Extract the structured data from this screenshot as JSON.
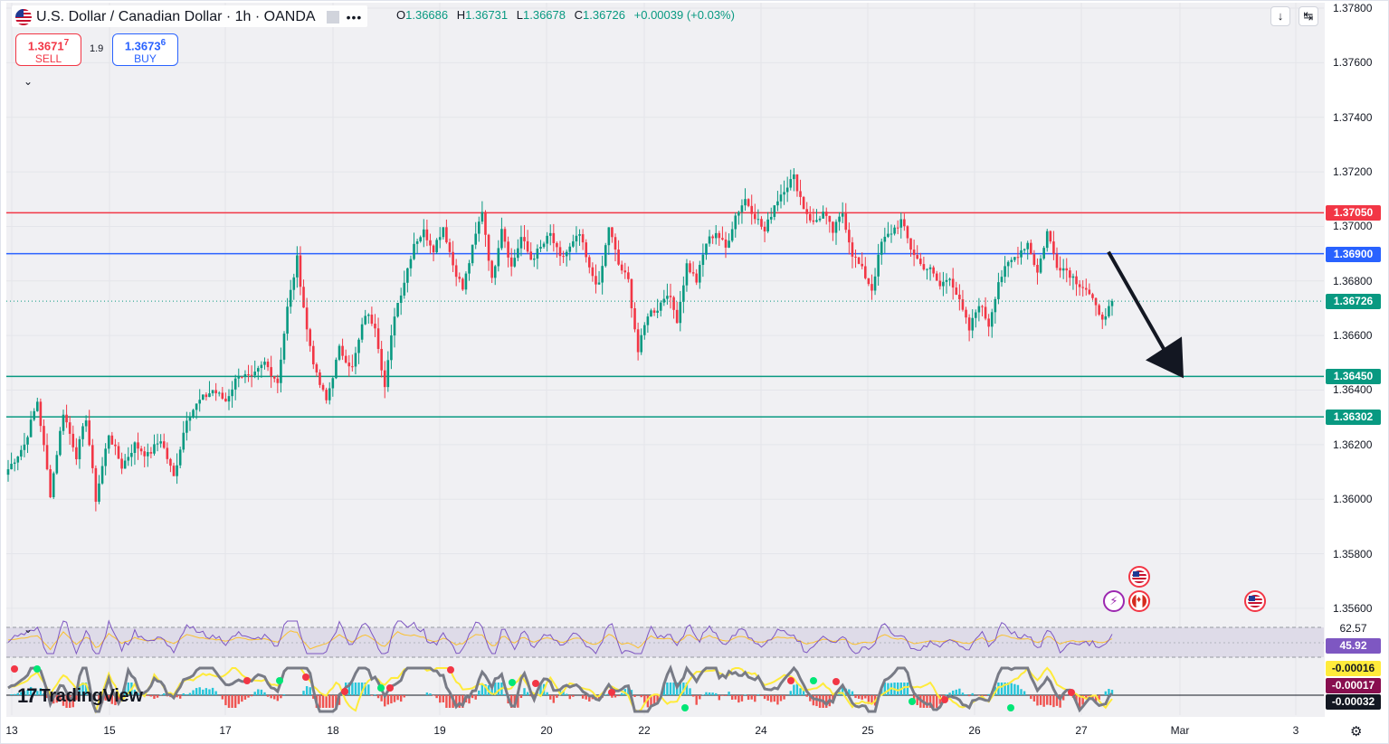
{
  "header": {
    "title": "U.S. Dollar / Canadian Dollar · 1h · OANDA",
    "ohlc": {
      "open_label": "O",
      "open": "1.36686",
      "high_label": "H",
      "high": "1.36731",
      "low_label": "L",
      "low": "1.36678",
      "close_label": "C",
      "close": "1.36726",
      "change": "+0.00039 (+0.03%)"
    },
    "sell": {
      "price_main": "1.3671",
      "price_small": "7",
      "label": "SELL"
    },
    "buy": {
      "price_main": "1.3673",
      "price_small": "6",
      "label": "BUY"
    },
    "spread": "1.9"
  },
  "chart_data": {
    "type": "candlestick",
    "symbol": "USDCAD",
    "interval": "1h",
    "source": "OANDA",
    "price_axis": {
      "min": 1.3554,
      "max": 1.3782,
      "ticks": [
        "1.37800",
        "1.37600",
        "1.37400",
        "1.37200",
        "1.37000",
        "1.36800",
        "1.36600",
        "1.36400",
        "1.36200",
        "1.36000",
        "1.35800",
        "1.35600"
      ],
      "tick_values": [
        1.378,
        1.376,
        1.374,
        1.372,
        1.37,
        1.368,
        1.366,
        1.364,
        1.362,
        1.36,
        1.358,
        1.356
      ]
    },
    "date_axis": {
      "labels": [
        "13",
        "15",
        "17",
        "18",
        "19",
        "20",
        "22",
        "24",
        "25",
        "26",
        "27",
        "Mar",
        "3"
      ]
    },
    "horizontal_levels": [
      {
        "price": 1.3705,
        "label": "1.37050",
        "color": "#f23645"
      },
      {
        "price": 1.369,
        "label": "1.36900",
        "color": "#2962ff"
      },
      {
        "price": 1.3645,
        "label": "1.36450",
        "color": "#089981"
      },
      {
        "price": 1.36302,
        "label": "1.36302",
        "color": "#089981"
      }
    ],
    "last_price": {
      "price": 1.36726,
      "label": "1.36726",
      "color": "#089981"
    },
    "path_knots": [
      [
        0,
        1.3611
      ],
      [
        5,
        1.362
      ],
      [
        9,
        1.3636
      ],
      [
        13,
        1.3602
      ],
      [
        17,
        1.3632
      ],
      [
        21,
        1.3616
      ],
      [
        24,
        1.363
      ],
      [
        27,
        1.36
      ],
      [
        31,
        1.3624
      ],
      [
        35,
        1.3612
      ],
      [
        39,
        1.362
      ],
      [
        43,
        1.3616
      ],
      [
        47,
        1.3622
      ],
      [
        51,
        1.3608
      ],
      [
        55,
        1.363
      ],
      [
        59,
        1.3636
      ],
      [
        63,
        1.364
      ],
      [
        67,
        1.3636
      ],
      [
        71,
        1.3646
      ],
      [
        75,
        1.3644
      ],
      [
        79,
        1.365
      ],
      [
        83,
        1.3643
      ],
      [
        86,
        1.367
      ],
      [
        89,
        1.3688
      ],
      [
        92,
        1.3662
      ],
      [
        95,
        1.3645
      ],
      [
        98,
        1.3636
      ],
      [
        102,
        1.3655
      ],
      [
        106,
        1.3648
      ],
      [
        110,
        1.3668
      ],
      [
        113,
        1.3664
      ],
      [
        116,
        1.3641
      ],
      [
        119,
        1.3668
      ],
      [
        122,
        1.368
      ],
      [
        125,
        1.3694
      ],
      [
        128,
        1.3698
      ],
      [
        131,
        1.3692
      ],
      [
        134,
        1.37
      ],
      [
        137,
        1.3686
      ],
      [
        140,
        1.3677
      ],
      [
        143,
        1.3692
      ],
      [
        146,
        1.3706
      ],
      [
        149,
        1.368
      ],
      [
        152,
        1.37
      ],
      [
        155,
        1.3685
      ],
      [
        158,
        1.3696
      ],
      [
        161,
        1.3688
      ],
      [
        164,
        1.3692
      ],
      [
        167,
        1.3697
      ],
      [
        170,
        1.3688
      ],
      [
        173,
        1.3692
      ],
      [
        176,
        1.3697
      ],
      [
        179,
        1.3684
      ],
      [
        182,
        1.3678
      ],
      [
        185,
        1.37
      ],
      [
        188,
        1.3686
      ],
      [
        191,
        1.368
      ],
      [
        194,
        1.3654
      ],
      [
        197,
        1.3668
      ],
      [
        200,
        1.367
      ],
      [
        203,
        1.3676
      ],
      [
        206,
        1.3666
      ],
      [
        209,
        1.3686
      ],
      [
        212,
        1.368
      ],
      [
        215,
        1.3694
      ],
      [
        218,
        1.3698
      ],
      [
        221,
        1.3692
      ],
      [
        224,
        1.3704
      ],
      [
        227,
        1.371
      ],
      [
        230,
        1.3704
      ],
      [
        233,
        1.3698
      ],
      [
        236,
        1.3708
      ],
      [
        239,
        1.3714
      ],
      [
        242,
        1.3718
      ],
      [
        245,
        1.3707
      ],
      [
        248,
        1.3701
      ],
      [
        251,
        1.3705
      ],
      [
        254,
        1.3698
      ],
      [
        257,
        1.3705
      ],
      [
        260,
        1.369
      ],
      [
        263,
        1.3684
      ],
      [
        266,
        1.3677
      ],
      [
        269,
        1.3694
      ],
      [
        272,
        1.3698
      ],
      [
        275,
        1.3702
      ],
      [
        278,
        1.3692
      ],
      [
        281,
        1.3686
      ],
      [
        284,
        1.3684
      ],
      [
        287,
        1.3678
      ],
      [
        290,
        1.3682
      ],
      [
        293,
        1.3672
      ],
      [
        296,
        1.3662
      ],
      [
        299,
        1.3672
      ],
      [
        302,
        1.3664
      ],
      [
        305,
        1.368
      ],
      [
        308,
        1.3686
      ],
      [
        311,
        1.369
      ],
      [
        314,
        1.3694
      ],
      [
        317,
        1.3683
      ],
      [
        320,
        1.3698
      ],
      [
        323,
        1.3686
      ],
      [
        326,
        1.3684
      ],
      [
        329,
        1.368
      ],
      [
        332,
        1.3677
      ],
      [
        335,
        1.367
      ],
      [
        338,
        1.3666
      ],
      [
        340,
        1.36726
      ]
    ],
    "rsi": {
      "upper_band": "62.57",
      "value": "45.92"
    },
    "macd": {
      "values": [
        "-0.00016",
        "-0.00017",
        "-0.00032"
      ]
    },
    "forecast_arrow": {
      "from_price": 1.369,
      "to_price": 1.3645
    }
  },
  "events": [
    {
      "type": "us-flag",
      "row": 1
    },
    {
      "type": "bolt",
      "row": 2
    },
    {
      "type": "ca-flag",
      "row": 2
    },
    {
      "type": "us-flag",
      "row": 2
    }
  ],
  "branding": {
    "logo_text": "TradingView"
  },
  "icons": {
    "download": "download-icon",
    "fullscreen": "fullscreen-icon",
    "settings": "gear-icon"
  }
}
